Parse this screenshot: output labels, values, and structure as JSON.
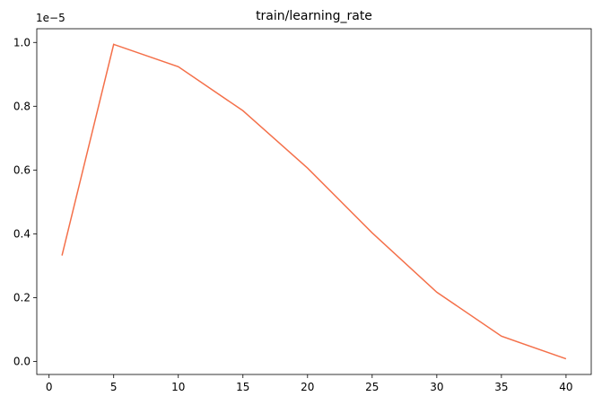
{
  "chart_data": {
    "type": "line",
    "title": "train/learning_rate",
    "y_offset_label": "1e−5",
    "x": [
      1,
      5,
      10,
      15,
      20,
      25,
      30,
      35,
      40
    ],
    "series": [
      {
        "name": "train/learning_rate",
        "color": "#f4704a",
        "values": [
          0.332,
          0.994,
          0.924,
          0.786,
          0.606,
          0.403,
          0.217,
          0.079,
          0.008
        ]
      }
    ],
    "xlim": [
      -0.95,
      41.95
    ],
    "xticks": [
      0,
      5,
      10,
      15,
      20,
      25,
      30,
      35,
      40
    ],
    "ylim": [
      -0.041,
      1.043
    ],
    "yticks": [
      {
        "value": 0,
        "label": "0.0"
      },
      0.2,
      0.4,
      0.6,
      0.8,
      {
        "value": 1,
        "label": "1.0"
      }
    ],
    "grid": false
  }
}
